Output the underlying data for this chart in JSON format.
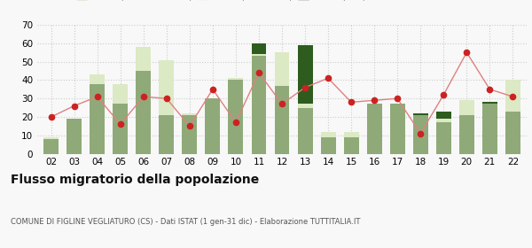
{
  "years": [
    "02",
    "03",
    "04",
    "05",
    "06",
    "07",
    "08",
    "09",
    "10",
    "11",
    "12",
    "13",
    "14",
    "15",
    "16",
    "17",
    "18",
    "19",
    "20",
    "21",
    "22"
  ],
  "iscritti_comuni": [
    8,
    19,
    38,
    27,
    45,
    21,
    21,
    30,
    40,
    53,
    37,
    25,
    9,
    9,
    27,
    27,
    21,
    17,
    21,
    27,
    23
  ],
  "iscritti_estero": [
    1,
    0,
    5,
    11,
    13,
    30,
    1,
    0,
    1,
    1,
    18,
    2,
    3,
    3,
    0,
    0,
    0,
    2,
    8,
    0,
    17
  ],
  "iscritti_altri": [
    0,
    0,
    0,
    0,
    0,
    0,
    0,
    0,
    0,
    6,
    0,
    32,
    0,
    0,
    0,
    0,
    1,
    4,
    0,
    1,
    0
  ],
  "cancellati": [
    20,
    26,
    31,
    16,
    31,
    30,
    15,
    35,
    17,
    44,
    27,
    36,
    41,
    28,
    29,
    30,
    11,
    32,
    55,
    35,
    31
  ],
  "color_comuni": "#8faa78",
  "color_estero": "#dce9c5",
  "color_altri": "#2d5c1e",
  "color_cancellati": "#cc2222",
  "ylim": [
    0,
    70
  ],
  "yticks": [
    0,
    10,
    20,
    30,
    40,
    50,
    60,
    70
  ],
  "title": "Flusso migratorio della popolazione",
  "subtitle": "COMUNE DI FIGLINE VEGLIATURO (CS) - Dati ISTAT (1 gen-31 dic) - Elaborazione TUTTITALIA.IT",
  "bg_color": "#f8f8f8",
  "grid_color": "#cccccc"
}
